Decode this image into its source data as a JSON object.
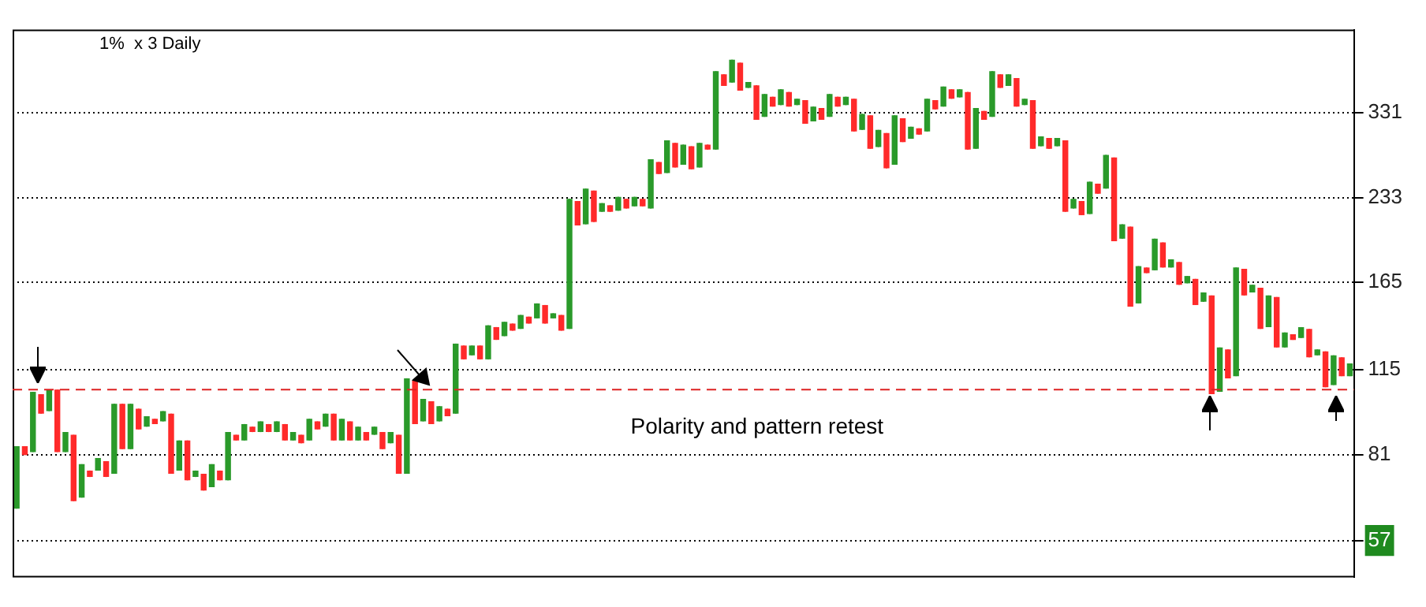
{
  "chart_data": {
    "type": "candlestick",
    "title": "1%  x 3 Daily",
    "categories": [
      null,
      null,
      null,
      null,
      null,
      null,
      null,
      null,
      null,
      null,
      null,
      null,
      null,
      null,
      null,
      null,
      null,
      null,
      null,
      null,
      null,
      null,
      null,
      null,
      null,
      null,
      null,
      null,
      null,
      null,
      null,
      null,
      null,
      null,
      null,
      null,
      null,
      null,
      null,
      null,
      null,
      null,
      null,
      null,
      null,
      null,
      null,
      null,
      null,
      null,
      null,
      null,
      null,
      null,
      null,
      null,
      null,
      null,
      null,
      null,
      null,
      null,
      null,
      null,
      null,
      null,
      null,
      null,
      null,
      null,
      null,
      null,
      null,
      null,
      null,
      null,
      null,
      null,
      null,
      null,
      null,
      null,
      null,
      null,
      null,
      null,
      null,
      null,
      null,
      null,
      null,
      null,
      null,
      null,
      null,
      null,
      null,
      null,
      null,
      null,
      null,
      null,
      null,
      null,
      null,
      null,
      null,
      null,
      null,
      null,
      null,
      null,
      null,
      null,
      null,
      null,
      null,
      null,
      null,
      null,
      null,
      null,
      null,
      null,
      null,
      null,
      null,
      null,
      null,
      null,
      null,
      null,
      null,
      null,
      null,
      null,
      null,
      null,
      null,
      null,
      null,
      null,
      null,
      null,
      null,
      null,
      null,
      null,
      null,
      null,
      null,
      null,
      null,
      null,
      null,
      null,
      null,
      null,
      null,
      null,
      null,
      null,
      null,
      null,
      null
    ],
    "ohlc": [
      [
        65,
        84,
        65,
        84
      ],
      [
        84,
        84,
        81,
        81
      ],
      [
        82,
        105,
        82,
        105
      ],
      [
        104,
        104,
        96,
        96
      ],
      [
        97,
        106,
        97,
        106
      ],
      [
        106,
        106,
        82,
        82
      ],
      [
        82,
        89,
        82,
        89
      ],
      [
        88,
        88,
        67,
        67
      ],
      [
        68,
        78,
        68,
        78
      ],
      [
        76,
        76,
        74,
        74
      ],
      [
        76,
        80,
        76,
        80
      ],
      [
        79,
        79,
        74,
        74
      ],
      [
        75,
        100,
        75,
        100
      ],
      [
        100,
        100,
        83,
        83
      ],
      [
        83,
        100,
        83,
        100
      ],
      [
        98,
        98,
        90,
        90
      ],
      [
        91,
        95,
        91,
        95
      ],
      [
        94,
        94,
        92,
        92
      ],
      [
        93,
        97,
        93,
        97
      ],
      [
        96,
        96,
        75,
        75
      ],
      [
        76,
        86,
        76,
        86
      ],
      [
        86,
        86,
        73,
        73
      ],
      [
        74,
        76,
        74,
        76
      ],
      [
        75,
        75,
        70,
        70
      ],
      [
        71,
        78,
        71,
        78
      ],
      [
        76,
        76,
        73,
        73
      ],
      [
        73,
        89,
        73,
        89
      ],
      [
        88,
        88,
        86,
        86
      ],
      [
        86,
        92,
        86,
        92
      ],
      [
        91,
        91,
        89,
        89
      ],
      [
        89,
        93,
        89,
        93
      ],
      [
        92,
        92,
        89,
        89
      ],
      [
        89,
        93,
        89,
        93
      ],
      [
        92,
        92,
        86,
        86
      ],
      [
        86,
        89,
        86,
        89
      ],
      [
        88,
        88,
        85,
        85
      ],
      [
        86,
        94,
        86,
        94
      ],
      [
        93,
        93,
        90,
        90
      ],
      [
        91,
        96,
        91,
        96
      ],
      [
        96,
        96,
        86,
        86
      ],
      [
        86,
        94,
        86,
        94
      ],
      [
        93,
        93,
        86,
        86
      ],
      [
        86,
        91,
        86,
        91
      ],
      [
        89,
        89,
        86,
        86
      ],
      [
        88,
        91,
        88,
        91
      ],
      [
        89,
        89,
        83,
        83
      ],
      [
        85,
        89,
        85,
        89
      ],
      [
        88,
        88,
        75,
        75
      ],
      [
        75,
        111,
        75,
        111
      ],
      [
        110,
        110,
        92,
        92
      ],
      [
        93,
        102,
        93,
        102
      ],
      [
        101,
        101,
        92,
        92
      ],
      [
        93,
        99,
        93,
        99
      ],
      [
        98,
        98,
        95,
        95
      ],
      [
        96,
        128,
        96,
        128
      ],
      [
        127,
        127,
        120,
        120
      ],
      [
        122,
        127,
        122,
        127
      ],
      [
        127,
        127,
        120,
        120
      ],
      [
        120,
        138,
        120,
        138
      ],
      [
        137,
        137,
        130,
        130
      ],
      [
        132,
        140,
        132,
        140
      ],
      [
        139,
        139,
        135,
        135
      ],
      [
        136,
        144,
        136,
        144
      ],
      [
        143,
        143,
        139,
        139
      ],
      [
        142,
        151,
        142,
        151
      ],
      [
        150,
        150,
        139,
        139
      ],
      [
        142,
        145,
        142,
        145
      ],
      [
        144,
        144,
        135,
        135
      ],
      [
        136,
        232,
        136,
        232
      ],
      [
        230,
        230,
        208,
        208
      ],
      [
        209,
        242,
        209,
        242
      ],
      [
        240,
        240,
        211,
        211
      ],
      [
        220,
        228,
        220,
        228
      ],
      [
        226,
        226,
        220,
        220
      ],
      [
        221,
        234,
        221,
        234
      ],
      [
        232,
        232,
        223,
        223
      ],
      [
        225,
        234,
        225,
        234
      ],
      [
        232,
        232,
        225,
        225
      ],
      [
        223,
        273,
        223,
        273
      ],
      [
        270,
        270,
        257,
        257
      ],
      [
        258,
        295,
        258,
        295
      ],
      [
        292,
        292,
        264,
        264
      ],
      [
        267,
        290,
        267,
        290
      ],
      [
        288,
        288,
        262,
        262
      ],
      [
        264,
        292,
        264,
        292
      ],
      [
        290,
        290,
        284,
        284
      ],
      [
        284,
        392,
        284,
        392
      ],
      [
        387,
        387,
        369,
        369
      ],
      [
        374,
        411,
        374,
        411
      ],
      [
        406,
        406,
        362,
        362
      ],
      [
        366,
        375,
        366,
        375
      ],
      [
        370,
        370,
        321,
        321
      ],
      [
        325,
        357,
        325,
        357
      ],
      [
        353,
        353,
        339,
        339
      ],
      [
        341,
        364,
        341,
        364
      ],
      [
        360,
        360,
        339,
        339
      ],
      [
        341,
        350,
        341,
        350
      ],
      [
        348,
        348,
        316,
        316
      ],
      [
        319,
        339,
        319,
        339
      ],
      [
        337,
        337,
        321,
        321
      ],
      [
        325,
        357,
        325,
        357
      ],
      [
        353,
        353,
        339,
        339
      ],
      [
        341,
        353,
        341,
        353
      ],
      [
        350,
        350,
        306,
        306
      ],
      [
        308,
        329,
        308,
        329
      ],
      [
        327,
        327,
        285,
        285
      ],
      [
        287,
        308,
        287,
        308
      ],
      [
        304,
        304,
        263,
        263
      ],
      [
        267,
        327,
        267,
        327
      ],
      [
        323,
        323,
        293,
        293
      ],
      [
        297,
        312,
        297,
        312
      ],
      [
        310,
        310,
        302,
        302
      ],
      [
        306,
        350,
        306,
        350
      ],
      [
        348,
        348,
        335,
        335
      ],
      [
        339,
        368,
        339,
        368
      ],
      [
        364,
        364,
        350,
        350
      ],
      [
        352,
        364,
        352,
        364
      ],
      [
        360,
        360,
        284,
        284
      ],
      [
        285,
        337,
        285,
        337
      ],
      [
        333,
        333,
        321,
        321
      ],
      [
        325,
        392,
        325,
        392
      ],
      [
        387,
        387,
        366,
        366
      ],
      [
        369,
        387,
        369,
        387
      ],
      [
        381,
        381,
        339,
        339
      ],
      [
        341,
        350,
        341,
        350
      ],
      [
        348,
        348,
        285,
        285
      ],
      [
        288,
        300,
        288,
        300
      ],
      [
        298,
        298,
        285,
        285
      ],
      [
        288,
        298,
        288,
        298
      ],
      [
        295,
        295,
        220,
        220
      ],
      [
        223,
        232,
        223,
        232
      ],
      [
        230,
        230,
        217,
        217
      ],
      [
        218,
        249,
        218,
        249
      ],
      [
        247,
        247,
        237,
        237
      ],
      [
        242,
        278,
        242,
        278
      ],
      [
        275,
        275,
        195,
        195
      ],
      [
        197,
        209,
        197,
        209
      ],
      [
        207,
        207,
        149,
        149
      ],
      [
        151,
        176,
        151,
        176
      ],
      [
        175,
        175,
        171,
        171
      ],
      [
        173,
        197,
        173,
        197
      ],
      [
        194,
        194,
        175,
        175
      ],
      [
        175,
        181,
        175,
        181
      ],
      [
        179,
        179,
        163,
        163
      ],
      [
        164,
        169,
        164,
        169
      ],
      [
        167,
        167,
        150,
        150
      ],
      [
        152,
        158,
        152,
        158
      ],
      [
        156,
        156,
        104,
        104
      ],
      [
        105,
        126,
        105,
        126
      ],
      [
        125,
        125,
        111,
        111
      ],
      [
        112,
        175,
        112,
        175
      ],
      [
        174,
        174,
        156,
        156
      ],
      [
        158,
        163,
        158,
        163
      ],
      [
        161,
        161,
        136,
        136
      ],
      [
        137,
        156,
        137,
        156
      ],
      [
        155,
        155,
        126,
        126
      ],
      [
        126,
        134,
        126,
        134
      ],
      [
        133,
        133,
        130,
        130
      ],
      [
        131,
        137,
        131,
        137
      ],
      [
        136,
        136,
        121,
        121
      ],
      [
        122,
        125,
        122,
        125
      ],
      [
        124,
        124,
        107,
        107
      ],
      [
        108,
        122,
        108,
        122
      ],
      [
        121,
        121,
        112,
        112
      ],
      [
        112,
        118,
        112,
        118
      ]
    ],
    "colors": [
      "#2a9a2a",
      "#ff2a2a",
      "#2a9a2a",
      "#ff2a2a",
      "#2a9a2a",
      "#ff2a2a",
      "#2a9a2a",
      "#ff2a2a",
      "#2a9a2a",
      "#ff2a2a",
      "#2a9a2a",
      "#ff2a2a",
      "#2a9a2a",
      "#ff2a2a",
      "#2a9a2a",
      "#ff2a2a",
      "#2a9a2a",
      "#ff2a2a",
      "#2a9a2a",
      "#ff2a2a",
      "#2a9a2a",
      "#ff2a2a",
      "#2a9a2a",
      "#ff2a2a",
      "#2a9a2a",
      "#ff2a2a",
      "#2a9a2a",
      "#ff2a2a",
      "#2a9a2a",
      "#ff2a2a",
      "#2a9a2a",
      "#ff2a2a",
      "#2a9a2a",
      "#ff2a2a",
      "#2a9a2a",
      "#ff2a2a",
      "#2a9a2a",
      "#ff2a2a",
      "#2a9a2a",
      "#ff2a2a",
      "#2a9a2a",
      "#ff2a2a",
      "#2a9a2a",
      "#ff2a2a",
      "#2a9a2a",
      "#ff2a2a",
      "#2a9a2a",
      "#ff2a2a",
      "#2a9a2a",
      "#ff2a2a",
      "#2a9a2a",
      "#ff2a2a",
      "#2a9a2a",
      "#ff2a2a",
      "#2a9a2a",
      "#ff2a2a",
      "#2a9a2a",
      "#ff2a2a",
      "#2a9a2a",
      "#ff2a2a",
      "#2a9a2a",
      "#ff2a2a",
      "#2a9a2a",
      "#ff2a2a",
      "#2a9a2a",
      "#ff2a2a",
      "#2a9a2a",
      "#ff2a2a",
      "#2a9a2a",
      "#ff2a2a",
      "#2a9a2a",
      "#ff2a2a",
      "#2a9a2a",
      "#ff2a2a",
      "#2a9a2a",
      "#ff2a2a",
      "#2a9a2a",
      "#ff2a2a",
      "#2a9a2a",
      "#ff2a2a",
      "#2a9a2a",
      "#ff2a2a",
      "#2a9a2a",
      "#ff2a2a",
      "#2a9a2a",
      "#ff2a2a",
      "#2a9a2a",
      "#ff2a2a",
      "#2a9a2a",
      "#ff2a2a",
      "#2a9a2a",
      "#ff2a2a",
      "#2a9a2a",
      "#ff2a2a",
      "#2a9a2a",
      "#ff2a2a",
      "#2a9a2a",
      "#ff2a2a",
      "#2a9a2a",
      "#ff2a2a",
      "#2a9a2a",
      "#ff2a2a",
      "#2a9a2a",
      "#ff2a2a",
      "#2a9a2a",
      "#ff2a2a",
      "#2a9a2a",
      "#ff2a2a",
      "#2a9a2a",
      "#ff2a2a",
      "#2a9a2a",
      "#ff2a2a",
      "#2a9a2a",
      "#ff2a2a",
      "#2a9a2a",
      "#ff2a2a",
      "#2a9a2a",
      "#ff2a2a",
      "#2a9a2a",
      "#ff2a2a",
      "#2a9a2a",
      "#ff2a2a",
      "#2a9a2a",
      "#ff2a2a",
      "#2a9a2a",
      "#ff2a2a",
      "#2a9a2a",
      "#ff2a2a",
      "#2a9a2a",
      "#ff2a2a",
      "#2a9a2a",
      "#ff2a2a",
      "#2a9a2a",
      "#ff2a2a",
      "#2a9a2a",
      "#ff2a2a",
      "#2a9a2a",
      "#ff2a2a",
      "#2a9a2a",
      "#ff2a2a",
      "#2a9a2a",
      "#ff2a2a",
      "#2a9a2a",
      "#ff2a2a",
      "#2a9a2a",
      "#ff2a2a",
      "#2a9a2a",
      "#ff2a2a",
      "#2a9a2a",
      "#ff2a2a",
      "#2a9a2a",
      "#ff2a2a",
      "#2a9a2a",
      "#ff2a2a",
      "#2a9a2a",
      "#ff2a2a",
      "#2a9a2a",
      "#ff2a2a",
      "#2a9a2a",
      "#ff2a2a",
      "#2a9a2a",
      "#ff2a2a",
      "#2a9a2a",
      "#ff2a2a",
      "#2a9a2a"
    ],
    "ylim": [
      49,
      465
    ],
    "yticks": [
      57,
      81,
      115,
      165,
      233,
      331
    ],
    "log": "y",
    "grid": "y",
    "tick_labels": "y",
    "ref_lines": [
      {
        "axis": "y",
        "value": 106,
        "label": "Polarity and pattern retest",
        "color": "#dd2222",
        "line_style": "dashed"
      }
    ]
  }
}
